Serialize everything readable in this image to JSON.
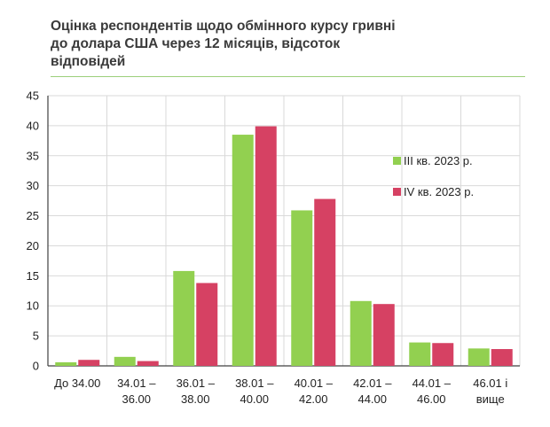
{
  "chart_data": {
    "type": "bar",
    "title_lines": [
      "Оцінка респондентів щодо обмінного курсу гривні",
      "до долара США через 12 місяців, відсоток",
      "відповідей"
    ],
    "categories": [
      [
        "До 34.00"
      ],
      [
        "34.01 –",
        "36.00"
      ],
      [
        "36.01 –",
        "38.00"
      ],
      [
        "38.01 –",
        "40.00"
      ],
      [
        "40.01 –",
        "42.00"
      ],
      [
        "42.01 –",
        "44.00"
      ],
      [
        "44.01 –",
        "46.00"
      ],
      [
        "46.01 і",
        "вище"
      ]
    ],
    "series": [
      {
        "name": "III кв. 2023 р.",
        "color": "#92d050",
        "values": [
          0.6,
          1.5,
          15.8,
          38.5,
          25.9,
          10.8,
          3.9,
          2.9
        ]
      },
      {
        "name": "IV кв. 2023 р.",
        "color": "#d64163",
        "values": [
          1.0,
          0.8,
          13.8,
          39.9,
          27.8,
          10.3,
          3.8,
          2.8
        ]
      }
    ],
    "yticks": [
      0,
      5,
      10,
      15,
      20,
      25,
      30,
      35,
      40,
      45
    ],
    "ylim": [
      0,
      45
    ],
    "grid": true,
    "legend_position": "right"
  }
}
